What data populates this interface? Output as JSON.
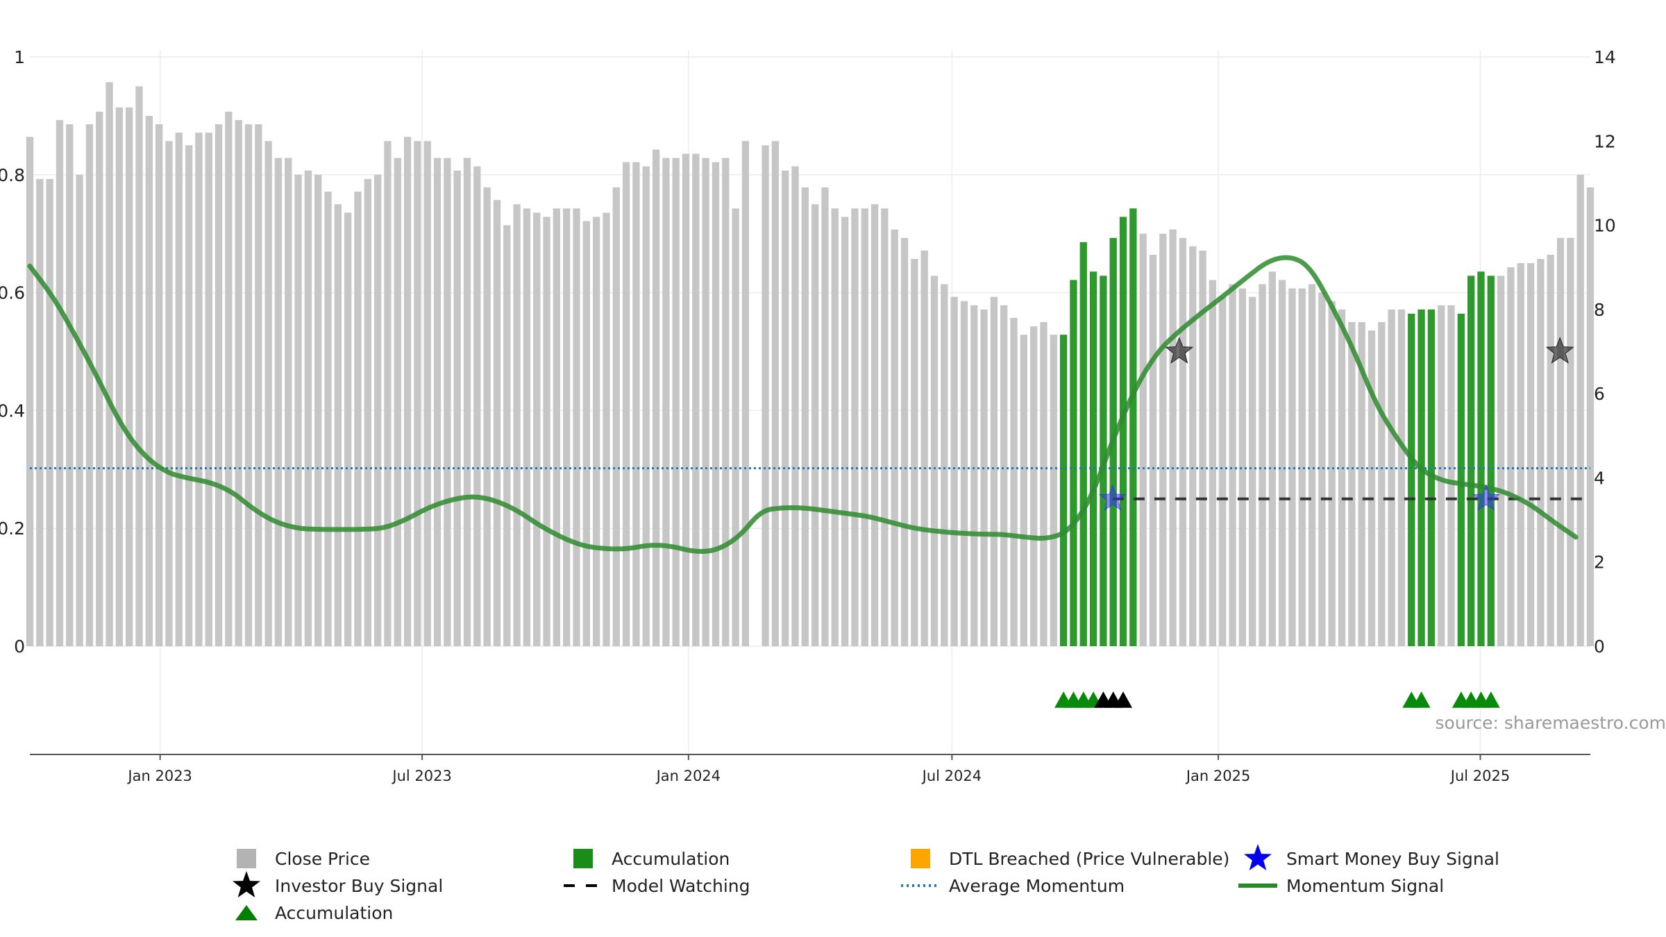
{
  "chart_data": {
    "type": "bar",
    "title": "",
    "source_label": "source: sharemaestro.com",
    "left_axis": {
      "range": [
        0,
        1
      ],
      "ticks": [
        "0",
        "0.2",
        "0.4",
        "0.6",
        "0.8",
        "1"
      ],
      "tick_values": [
        0,
        0.2,
        0.4,
        0.6,
        0.8,
        1
      ]
    },
    "right_axis": {
      "range": [
        0,
        14
      ],
      "ticks": [
        "0",
        "2",
        "4",
        "6",
        "8",
        "10",
        "12",
        "14"
      ],
      "tick_values": [
        0,
        2,
        4,
        6,
        8,
        10,
        12,
        14
      ]
    },
    "x_axis": {
      "start": "2022-10-03",
      "end": "2025-09-15",
      "ticks": [
        {
          "date": "2023-01-01",
          "label": "Jan 2023"
        },
        {
          "date": "2023-07-01",
          "label": "Jul 2023"
        },
        {
          "date": "2024-01-01",
          "label": "Jan 2024"
        },
        {
          "date": "2024-07-01",
          "label": "Jul 2024"
        },
        {
          "date": "2025-01-01",
          "label": "Jan 2025"
        },
        {
          "date": "2025-07-01",
          "label": "Jul 2025"
        }
      ]
    },
    "close_price": {
      "name": "Close Price",
      "frequency": "weekly",
      "axis": "right",
      "start": "2022-10-03",
      "values": [
        12.1,
        11.1,
        11.1,
        12.5,
        12.4,
        11.2,
        12.4,
        12.7,
        13.4,
        12.8,
        12.8,
        13.3,
        12.6,
        12.4,
        12.0,
        12.2,
        11.9,
        12.2,
        12.2,
        12.4,
        12.7,
        12.5,
        12.4,
        12.4,
        12.0,
        11.6,
        11.6,
        11.2,
        11.3,
        11.2,
        10.8,
        10.5,
        10.3,
        10.8,
        11.1,
        11.2,
        12.0,
        11.6,
        12.1,
        12.0,
        12.0,
        11.6,
        11.6,
        11.3,
        11.6,
        11.4,
        10.9,
        10.6,
        10.0,
        10.5,
        10.4,
        10.3,
        10.2,
        10.4,
        10.4,
        10.4,
        10.1,
        10.2,
        10.3,
        10.9,
        11.5,
        11.5,
        11.4,
        11.8,
        11.6,
        11.6,
        11.7,
        11.7,
        11.6,
        11.5,
        11.6,
        10.4,
        12.0,
        0,
        11.9,
        12.0,
        11.3,
        11.4,
        10.9,
        10.5,
        10.9,
        10.4,
        10.2,
        10.4,
        10.4,
        10.5,
        10.4,
        9.9,
        9.7,
        9.2,
        9.4,
        8.8,
        8.6,
        8.3,
        8.2,
        8.1,
        8.0,
        8.3,
        8.1,
        7.8,
        7.4,
        7.6,
        7.7,
        7.4,
        7.4,
        8.7,
        9.6,
        8.9,
        8.8,
        9.7,
        10.2,
        10.4,
        9.8,
        9.3,
        9.8,
        9.9,
        9.7,
        9.5,
        9.4,
        8.7,
        8.3,
        8.6,
        8.5,
        8.3,
        8.6,
        8.9,
        8.7,
        8.5,
        8.5,
        8.6,
        8.4,
        8.2,
        8.0,
        7.7,
        7.7,
        7.5,
        7.7,
        8.0,
        8.0,
        7.9,
        8.0,
        8.0,
        8.1,
        8.1,
        7.9,
        8.8,
        8.9,
        8.8,
        8.8,
        9.0,
        9.1,
        9.1,
        9.2,
        9.3,
        9.7,
        9.7,
        11.2,
        10.9
      ]
    },
    "accumulation_bars": {
      "name": "Accumulation",
      "description": "weeks where close-price bar is highlighted as accumulation",
      "indices": [
        104,
        105,
        106,
        107,
        108,
        109,
        110,
        111,
        139,
        140,
        141,
        144,
        145,
        146,
        147
      ]
    },
    "dtl_breached": {
      "name": "DTL Breached (Price Vulnerable)",
      "indices": []
    },
    "momentum_signal": {
      "name": "Momentum Signal",
      "axis": "left",
      "points": [
        [
          "2022-10-03",
          0.645
        ],
        [
          "2022-10-20",
          0.59
        ],
        [
          "2022-11-05",
          0.52
        ],
        [
          "2022-11-20",
          0.45
        ],
        [
          "2022-12-05",
          0.375
        ],
        [
          "2022-12-20",
          0.325
        ],
        [
          "2023-01-05",
          0.295
        ],
        [
          "2023-01-20",
          0.285
        ],
        [
          "2023-02-05",
          0.278
        ],
        [
          "2023-02-20",
          0.262
        ],
        [
          "2023-03-05",
          0.235
        ],
        [
          "2023-03-20",
          0.212
        ],
        [
          "2023-04-05",
          0.2
        ],
        [
          "2023-04-20",
          0.198
        ],
        [
          "2023-05-05",
          0.198
        ],
        [
          "2023-05-20",
          0.198
        ],
        [
          "2023-06-05",
          0.2
        ],
        [
          "2023-06-20",
          0.215
        ],
        [
          "2023-07-05",
          0.235
        ],
        [
          "2023-07-20",
          0.248
        ],
        [
          "2023-08-05",
          0.255
        ],
        [
          "2023-08-20",
          0.248
        ],
        [
          "2023-09-05",
          0.23
        ],
        [
          "2023-09-20",
          0.205
        ],
        [
          "2023-10-05",
          0.185
        ],
        [
          "2023-10-20",
          0.17
        ],
        [
          "2023-11-05",
          0.165
        ],
        [
          "2023-11-20",
          0.165
        ],
        [
          "2023-12-05",
          0.172
        ],
        [
          "2023-12-20",
          0.17
        ],
        [
          "2024-01-05",
          0.16
        ],
        [
          "2024-01-20",
          0.162
        ],
        [
          "2024-02-05",
          0.185
        ],
        [
          "2024-02-20",
          0.23
        ],
        [
          "2024-03-05",
          0.235
        ],
        [
          "2024-03-20",
          0.235
        ],
        [
          "2024-04-05",
          0.23
        ],
        [
          "2024-04-20",
          0.225
        ],
        [
          "2024-05-05",
          0.22
        ],
        [
          "2024-05-20",
          0.21
        ],
        [
          "2024-06-05",
          0.2
        ],
        [
          "2024-06-20",
          0.195
        ],
        [
          "2024-07-05",
          0.192
        ],
        [
          "2024-07-20",
          0.19
        ],
        [
          "2024-08-05",
          0.19
        ],
        [
          "2024-08-20",
          0.185
        ],
        [
          "2024-09-05",
          0.182
        ],
        [
          "2024-09-20",
          0.195
        ],
        [
          "2024-10-05",
          0.25
        ],
        [
          "2024-10-20",
          0.35
        ],
        [
          "2024-11-05",
          0.44
        ],
        [
          "2024-11-20",
          0.5
        ],
        [
          "2024-12-05",
          0.535
        ],
        [
          "2024-12-20",
          0.565
        ],
        [
          "2025-01-05",
          0.595
        ],
        [
          "2025-01-20",
          0.625
        ],
        [
          "2025-02-05",
          0.655
        ],
        [
          "2025-02-20",
          0.662
        ],
        [
          "2025-03-05",
          0.645
        ],
        [
          "2025-03-20",
          0.58
        ],
        [
          "2025-04-05",
          0.5
        ],
        [
          "2025-04-20",
          0.41
        ],
        [
          "2025-05-05",
          0.35
        ],
        [
          "2025-05-20",
          0.3
        ],
        [
          "2025-06-05",
          0.28
        ],
        [
          "2025-06-20",
          0.275
        ],
        [
          "2025-07-05",
          0.27
        ],
        [
          "2025-07-20",
          0.26
        ],
        [
          "2025-08-05",
          0.24
        ],
        [
          "2025-08-20",
          0.212
        ],
        [
          "2025-09-05",
          0.185
        ]
      ]
    },
    "average_momentum": {
      "name": "Average Momentum",
      "axis": "left",
      "value": 0.302
    },
    "model_watching": {
      "name": "Model Watching",
      "axis": "left",
      "value": 0.25,
      "start": "2024-10-20",
      "end": "2025-09-15"
    },
    "investor_buy_signal": {
      "name": "Investor Buy Signal",
      "axis": "left",
      "points": [
        [
          "2024-12-05",
          0.5
        ],
        [
          "2025-08-25",
          0.5
        ]
      ]
    },
    "smart_money_buy_signal": {
      "name": "Smart Money Buy Signal",
      "axis": "left",
      "points": [
        [
          "2024-10-20",
          0.25
        ],
        [
          "2025-07-05",
          0.25
        ]
      ]
    },
    "accumulation_markers": {
      "name": "Accumulation",
      "green": [
        104,
        105,
        106,
        107,
        139,
        140,
        144,
        145,
        146,
        147
      ],
      "black": [
        108,
        109,
        110
      ]
    },
    "legend": [
      {
        "label": "Close Price",
        "symbol": "square",
        "color": "#b3b3b3"
      },
      {
        "label": "Accumulation",
        "symbol": "square",
        "color": "#1a8c1a"
      },
      {
        "label": "DTL Breached (Price Vulnerable)",
        "symbol": "square",
        "color": "#ffa500"
      },
      {
        "label": "Smart Money Buy Signal",
        "symbol": "star",
        "color": "#0000ee"
      },
      {
        "label": "Investor Buy Signal",
        "symbol": "star",
        "color": "#000000"
      },
      {
        "label": "Model Watching",
        "symbol": "dash",
        "color": "#000000"
      },
      {
        "label": "Average Momentum",
        "symbol": "dotted",
        "color": "#1f77b4"
      },
      {
        "label": "Momentum Signal",
        "symbol": "line",
        "color": "#228B22"
      },
      {
        "label": "Accumulation",
        "symbol": "triangle",
        "color": "#008000"
      }
    ],
    "colors": {
      "price_bar": "#c6c6c6",
      "accumulation_bar": "#2e9a2e",
      "momentum": "#2e8b2e",
      "avg_momentum": "#1f77b4",
      "model_watching": "#333333",
      "grid": "#ececec",
      "axis": "#555555"
    }
  }
}
